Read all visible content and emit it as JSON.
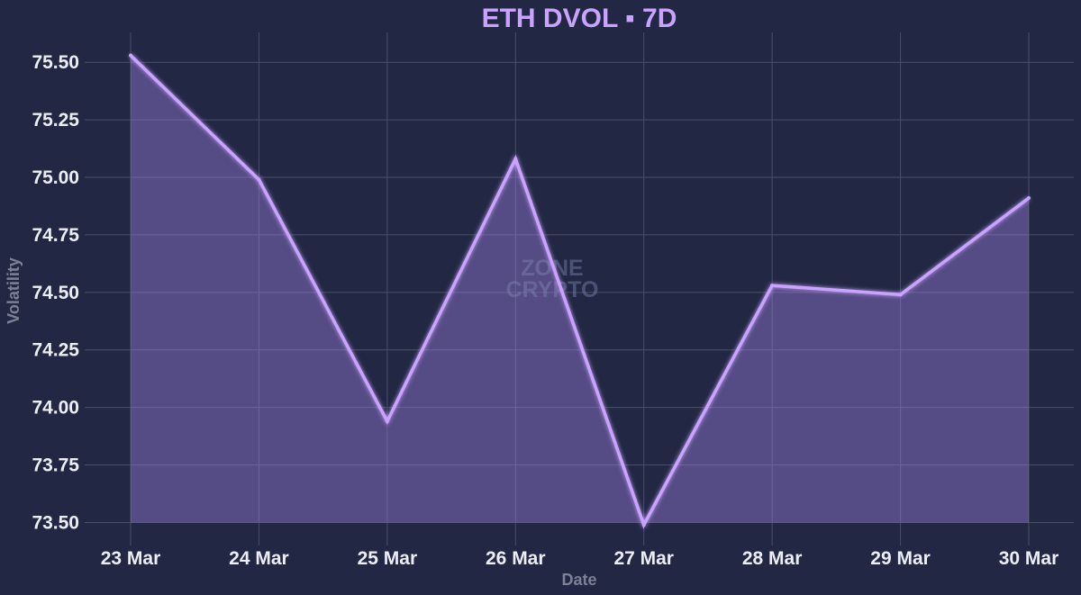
{
  "chart_data": {
    "type": "area",
    "title": "ETH DVOL ▪ 7D",
    "xlabel": "Date",
    "ylabel": "Volatility",
    "categories": [
      "23 Mar",
      "24 Mar",
      "25 Mar",
      "26 Mar",
      "27 Mar",
      "28 Mar",
      "29 Mar",
      "30 Mar"
    ],
    "series": [
      {
        "values": [
          75.53,
          74.99,
          73.94,
          75.08,
          73.49,
          74.53,
          74.49,
          74.91
        ],
        "color": "#c9a3ff"
      }
    ],
    "ylim": [
      73.4,
      75.63
    ],
    "yticks": [
      "73.50",
      "73.75",
      "74.00",
      "74.25",
      "74.50",
      "74.75",
      "75.00",
      "75.25",
      "75.50"
    ],
    "grid": true,
    "legend": "none",
    "colors": {
      "background": "#222844",
      "grid": "#4a4f68",
      "line": "#c9a3ff",
      "fill": "#a07ee0"
    }
  },
  "watermark": {
    "line1": "ZONE",
    "line2": "CRYPTO"
  }
}
